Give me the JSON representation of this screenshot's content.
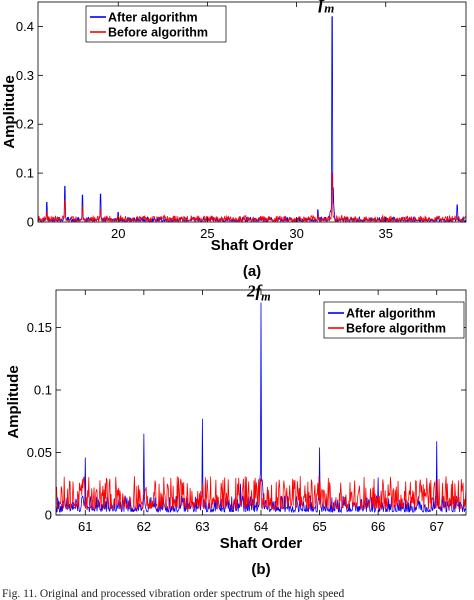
{
  "chart_data": [
    {
      "type": "line",
      "panel_label": "(a)",
      "xlabel": "Shaft Order",
      "ylabel": "Amplitude",
      "xlim": [
        15.5,
        39.5
      ],
      "ylim": [
        0,
        0.45
      ],
      "xticks": [
        "20",
        "25",
        "30",
        "35"
      ],
      "yticks": [
        "0",
        "0.1",
        "0.2",
        "0.3",
        "0.4"
      ],
      "annotation": {
        "base": "f",
        "sub": "m",
        "x": 32.0
      },
      "legend_position": "top-left",
      "grid": false,
      "series": [
        {
          "name": "After algorithm",
          "color": "#0000ff",
          "noise": 0.004,
          "peaks": [
            [
              16.0,
              0.04
            ],
            [
              17.0,
              0.073
            ],
            [
              18.0,
              0.055
            ],
            [
              19.0,
              0.057
            ],
            [
              20.0,
              0.02
            ],
            [
              27.0,
              0.01
            ],
            [
              31.2,
              0.025
            ],
            [
              32.0,
              0.42
            ],
            [
              35.0,
              0.01
            ],
            [
              39.0,
              0.035
            ]
          ]
        },
        {
          "name": "Before algorithm",
          "color": "#ff0000",
          "noise": 0.005,
          "peaks": [
            [
              16.0,
              0.02
            ],
            [
              17.0,
              0.045
            ],
            [
              18.0,
              0.03
            ],
            [
              19.0,
              0.025
            ],
            [
              20.0,
              0.012
            ],
            [
              27.0,
              0.008
            ],
            [
              32.0,
              0.1
            ],
            [
              38.0,
              0.012
            ]
          ]
        }
      ]
    },
    {
      "type": "line",
      "panel_label": "(b)",
      "xlabel": "Shaft Order",
      "ylabel": "Amplitude",
      "xlim": [
        60.5,
        67.5
      ],
      "ylim": [
        0,
        0.18
      ],
      "xticks": [
        "61",
        "62",
        "63",
        "64",
        "65",
        "66",
        "67"
      ],
      "yticks": [
        "0",
        "0.05",
        "0.1",
        "0.15"
      ],
      "annotation": {
        "base": "2f",
        "sub": "m",
        "x": 64.0
      },
      "legend_position": "top-right",
      "grid": false,
      "series": [
        {
          "name": "After algorithm",
          "color": "#0000ff",
          "noise": 0.006,
          "peaks": [
            [
              61.0,
              0.046
            ],
            [
              62.0,
              0.065
            ],
            [
              63.0,
              0.077
            ],
            [
              63.65,
              0.025
            ],
            [
              64.0,
              0.17
            ],
            [
              65.0,
              0.054
            ],
            [
              66.0,
              0.03
            ],
            [
              67.0,
              0.059
            ]
          ]
        },
        {
          "name": "Before algorithm",
          "color": "#ff0000",
          "noise": 0.012,
          "peaks": [
            [
              62.0,
              0.015
            ],
            [
              63.0,
              0.02
            ],
            [
              63.7,
              0.02
            ],
            [
              64.0,
              0.028
            ],
            [
              64.3,
              0.02
            ],
            [
              66.0,
              0.015
            ],
            [
              66.9,
              0.028
            ]
          ]
        }
      ]
    }
  ],
  "caption": "Fig. 11.    Original and processed vibration order spectrum of the high speed"
}
